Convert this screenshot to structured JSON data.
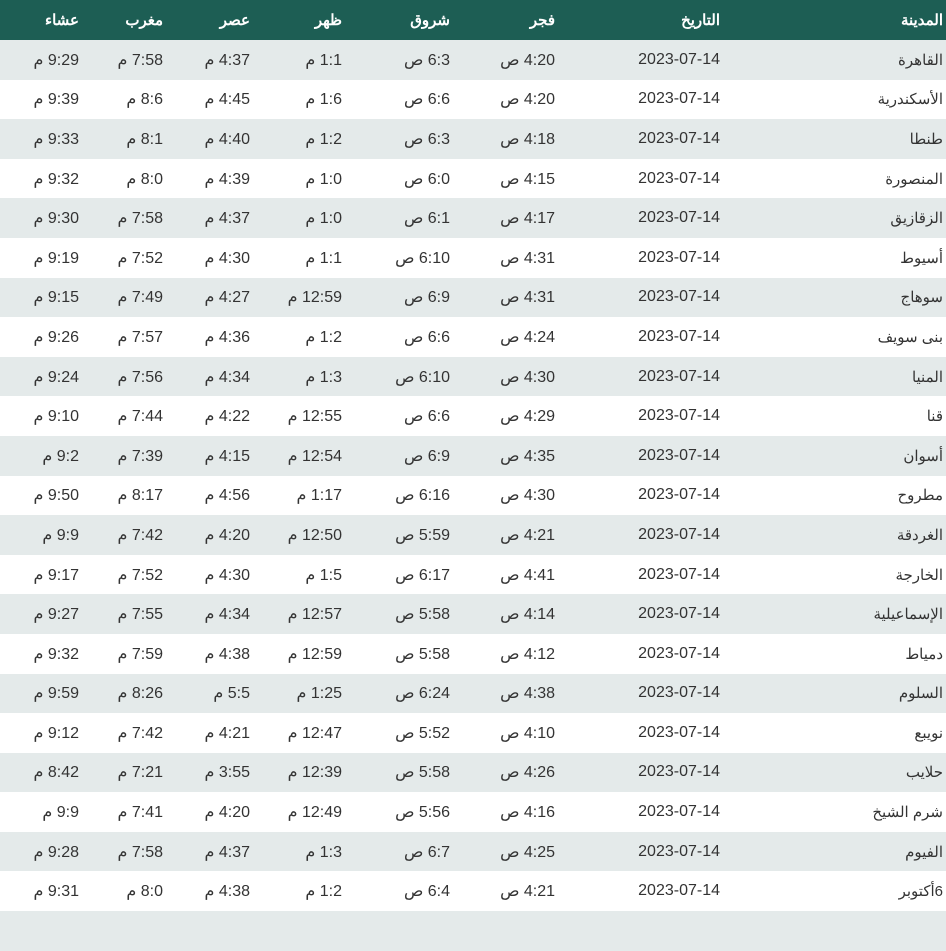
{
  "headers": [
    "المدينة",
    "التاريخ",
    "فجر",
    "شروق",
    "ظهر",
    "عصر",
    "مغرب",
    "عشاء"
  ],
  "rows": [
    [
      "القاهرة",
      "2023-07-14",
      "4:20 ص",
      "6:3 ص",
      "1:1 م",
      "4:37 م",
      "7:58 م",
      "9:29 م"
    ],
    [
      "الأسكندرية",
      "2023-07-14",
      "4:20 ص",
      "6:6 ص",
      "1:6 م",
      "4:45 م",
      "8:6 م",
      "9:39 م"
    ],
    [
      "طنطا",
      "2023-07-14",
      "4:18 ص",
      "6:3 ص",
      "1:2 م",
      "4:40 م",
      "8:1 م",
      "9:33 م"
    ],
    [
      "المنصورة",
      "2023-07-14",
      "4:15 ص",
      "6:0 ص",
      "1:0 م",
      "4:39 م",
      "8:0 م",
      "9:32 م"
    ],
    [
      "الزقازيق",
      "2023-07-14",
      "4:17 ص",
      "6:1 ص",
      "1:0 م",
      "4:37 م",
      "7:58 م",
      "9:30 م"
    ],
    [
      "أسيوط",
      "2023-07-14",
      "4:31 ص",
      "6:10 ص",
      "1:1 م",
      "4:30 م",
      "7:52 م",
      "9:19 م"
    ],
    [
      "سوهاج",
      "2023-07-14",
      "4:31 ص",
      "6:9 ص",
      "12:59 م",
      "4:27 م",
      "7:49 م",
      "9:15 م"
    ],
    [
      "بنى سويف",
      "2023-07-14",
      "4:24 ص",
      "6:6 ص",
      "1:2 م",
      "4:36 م",
      "7:57 م",
      "9:26 م"
    ],
    [
      "المنيا",
      "2023-07-14",
      "4:30 ص",
      "6:10 ص",
      "1:3 م",
      "4:34 م",
      "7:56 م",
      "9:24 م"
    ],
    [
      "قنا",
      "2023-07-14",
      "4:29 ص",
      "6:6 ص",
      "12:55 م",
      "4:22 م",
      "7:44 م",
      "9:10 م"
    ],
    [
      "أسوان",
      "2023-07-14",
      "4:35 ص",
      "6:9 ص",
      "12:54 م",
      "4:15 م",
      "7:39 م",
      "9:2 م"
    ],
    [
      "مطروح",
      "2023-07-14",
      "4:30 ص",
      "6:16 ص",
      "1:17 م",
      "4:56 م",
      "8:17 م",
      "9:50 م"
    ],
    [
      "الغردقة",
      "2023-07-14",
      "4:21 ص",
      "5:59 ص",
      "12:50 م",
      "4:20 م",
      "7:42 م",
      "9:9 م"
    ],
    [
      "الخارجة",
      "2023-07-14",
      "4:41 ص",
      "6:17 ص",
      "1:5 م",
      "4:30 م",
      "7:52 م",
      "9:17 م"
    ],
    [
      "الإسماعيلية",
      "2023-07-14",
      "4:14 ص",
      "5:58 ص",
      "12:57 م",
      "4:34 م",
      "7:55 م",
      "9:27 م"
    ],
    [
      "دمياط",
      "2023-07-14",
      "4:12 ص",
      "5:58 ص",
      "12:59 م",
      "4:38 م",
      "7:59 م",
      "9:32 م"
    ],
    [
      "السلوم",
      "2023-07-14",
      "4:38 ص",
      "6:24 ص",
      "1:25 م",
      "5:5 م",
      "8:26 م",
      "9:59 م"
    ],
    [
      "نويبع",
      "2023-07-14",
      "4:10 ص",
      "5:52 ص",
      "12:47 م",
      "4:21 م",
      "7:42 م",
      "9:12 م"
    ],
    [
      "حلايب",
      "2023-07-14",
      "4:26 ص",
      "5:58 ص",
      "12:39 م",
      "3:55 م",
      "7:21 م",
      "8:42 م"
    ],
    [
      "شرم الشيخ",
      "2023-07-14",
      "4:16 ص",
      "5:56 ص",
      "12:49 م",
      "4:20 م",
      "7:41 م",
      "9:9 م"
    ],
    [
      "الفيوم",
      "2023-07-14",
      "4:25 ص",
      "6:7 ص",
      "1:3 م",
      "4:37 م",
      "7:58 م",
      "9:28 م"
    ],
    [
      "6أكتوبر",
      "2023-07-14",
      "4:21 ص",
      "6:4 ص",
      "1:2 م",
      "4:38 م",
      "8:0 م",
      "9:31 م"
    ]
  ],
  "colors": {
    "header_bg": "#1d5e54",
    "stripe_bg": "#e4eaea",
    "text": "#333333"
  }
}
